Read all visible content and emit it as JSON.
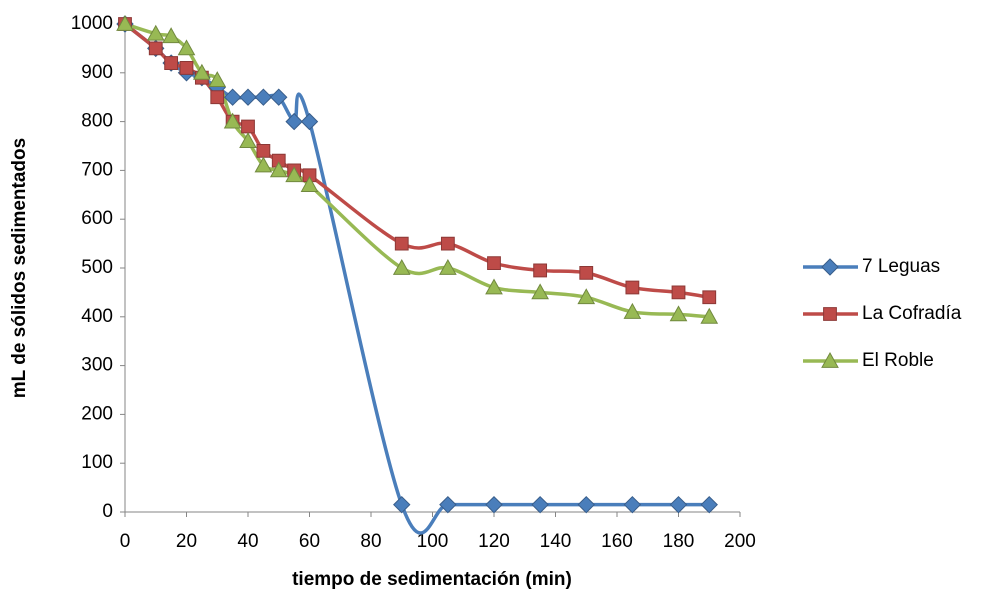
{
  "chart_data": {
    "type": "line",
    "x_label": "tiempo de sedimentación (min)",
    "y_label": "mL de sólidos sedimentados",
    "x": [
      0,
      10,
      15,
      20,
      25,
      30,
      35,
      40,
      45,
      50,
      55,
      60,
      90,
      105,
      120,
      135,
      150,
      165,
      180,
      190
    ],
    "series": [
      {
        "name": "7 Leguas",
        "color": "#4a7ebb",
        "marker": "diamond",
        "values": [
          1000,
          950,
          920,
          900,
          890,
          870,
          850,
          850,
          850,
          850,
          800,
          800,
          15,
          15,
          15,
          15,
          15,
          15,
          15,
          15
        ]
      },
      {
        "name": "La Cofradía",
        "color": "#be4b48",
        "marker": "square",
        "values": [
          1000,
          950,
          920,
          910,
          890,
          850,
          800,
          790,
          740,
          720,
          700,
          690,
          550,
          550,
          510,
          495,
          490,
          460,
          450,
          440
        ]
      },
      {
        "name": "El Roble",
        "color": "#98b954",
        "marker": "triangle",
        "values": [
          1000,
          980,
          975,
          950,
          900,
          885,
          800,
          760,
          710,
          700,
          690,
          670,
          500,
          500,
          460,
          450,
          440,
          410,
          405,
          400
        ]
      }
    ],
    "xlim": [
      0,
      200
    ],
    "xticks": [
      0,
      20,
      40,
      60,
      80,
      100,
      120,
      140,
      160,
      180,
      200
    ],
    "ylim": [
      0,
      1000
    ],
    "yticks": [
      0,
      100,
      200,
      300,
      400,
      500,
      600,
      700,
      800,
      900,
      1000
    ],
    "grid": false,
    "legend": "right"
  }
}
